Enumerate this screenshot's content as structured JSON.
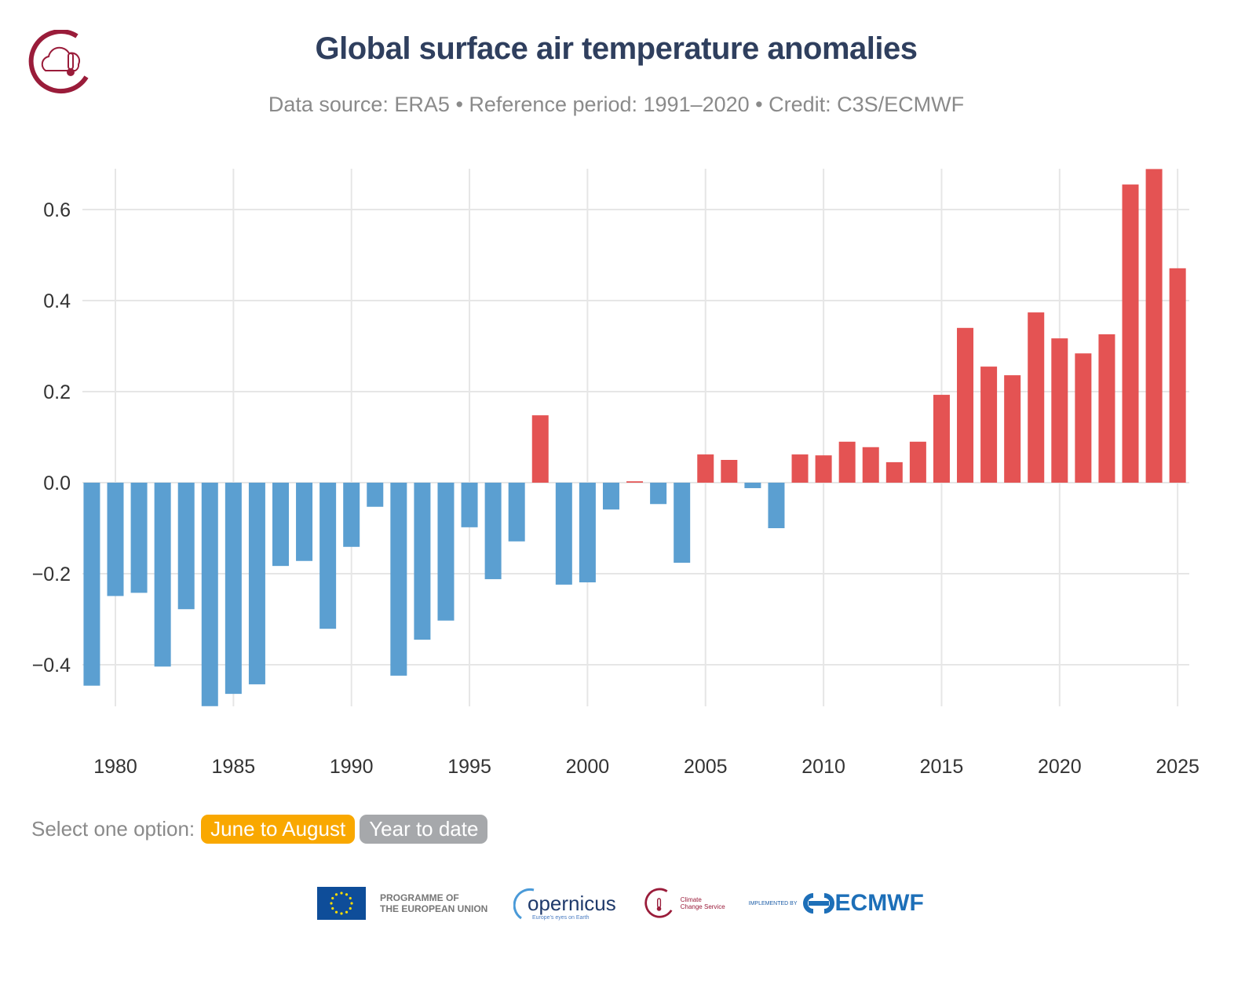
{
  "header": {
    "title": "Global surface air temperature anomalies",
    "subtitle": "Data source: ERA5 • Reference period: 1991–2020 • Credit: C3S/ECMWF",
    "logo": "climate-change-service-logo"
  },
  "options": {
    "label": "Select one option:",
    "items": [
      {
        "label": "June to August",
        "active": true
      },
      {
        "label": "Year to date",
        "active": false
      }
    ],
    "active_color": "#f9a800",
    "inactive_color": "#a6a8ab"
  },
  "footer": {
    "eu_text_line1": "PROGRAMME OF",
    "eu_text_line2": "THE EUROPEAN UNION",
    "copernicus": "opernicus",
    "copernicus_tagline": "Europe's eyes on Earth",
    "ccs_line1": "Climate",
    "ccs_line2": "Change Service",
    "implemented_by": "IMPLEMENTED BY",
    "ecmwf": "ECMWF"
  },
  "chart_data": {
    "type": "bar",
    "title": "Global surface air temperature anomalies",
    "xlabel": "",
    "ylabel": "",
    "ylim": [
      -0.5,
      0.69
    ],
    "grid": true,
    "positive_color": "#e45353",
    "negative_color": "#5b9fd1",
    "yticks": [
      "-0.4",
      "-0.2",
      "0.0",
      "0.2",
      "0.4",
      "0.6"
    ],
    "xticks": [
      "1980",
      "1985",
      "1990",
      "1995",
      "2000",
      "2005",
      "2010",
      "2015",
      "2020",
      "2025"
    ],
    "x": [
      1979,
      1980,
      1981,
      1982,
      1983,
      1984,
      1985,
      1986,
      1987,
      1988,
      1989,
      1990,
      1991,
      1992,
      1993,
      1994,
      1995,
      1996,
      1997,
      1998,
      1999,
      2000,
      2001,
      2002,
      2003,
      2004,
      2005,
      2006,
      2007,
      2008,
      2009,
      2010,
      2011,
      2012,
      2013,
      2014,
      2015,
      2016,
      2017,
      2018,
      2019,
      2020,
      2021,
      2022,
      2023,
      2024,
      2025
    ],
    "values": [
      -0.446,
      -0.249,
      -0.242,
      -0.404,
      -0.278,
      -0.491,
      -0.464,
      -0.443,
      -0.183,
      -0.172,
      -0.321,
      -0.141,
      -0.053,
      -0.424,
      -0.345,
      -0.303,
      -0.098,
      -0.212,
      -0.129,
      0.148,
      -0.224,
      -0.219,
      -0.059,
      0.003,
      -0.047,
      -0.176,
      0.062,
      0.05,
      -0.012,
      -0.1,
      0.062,
      0.06,
      0.09,
      0.078,
      0.045,
      0.09,
      0.193,
      0.34,
      0.255,
      0.236,
      0.374,
      0.317,
      0.284,
      0.326,
      0.655,
      0.689,
      0.471
    ]
  }
}
